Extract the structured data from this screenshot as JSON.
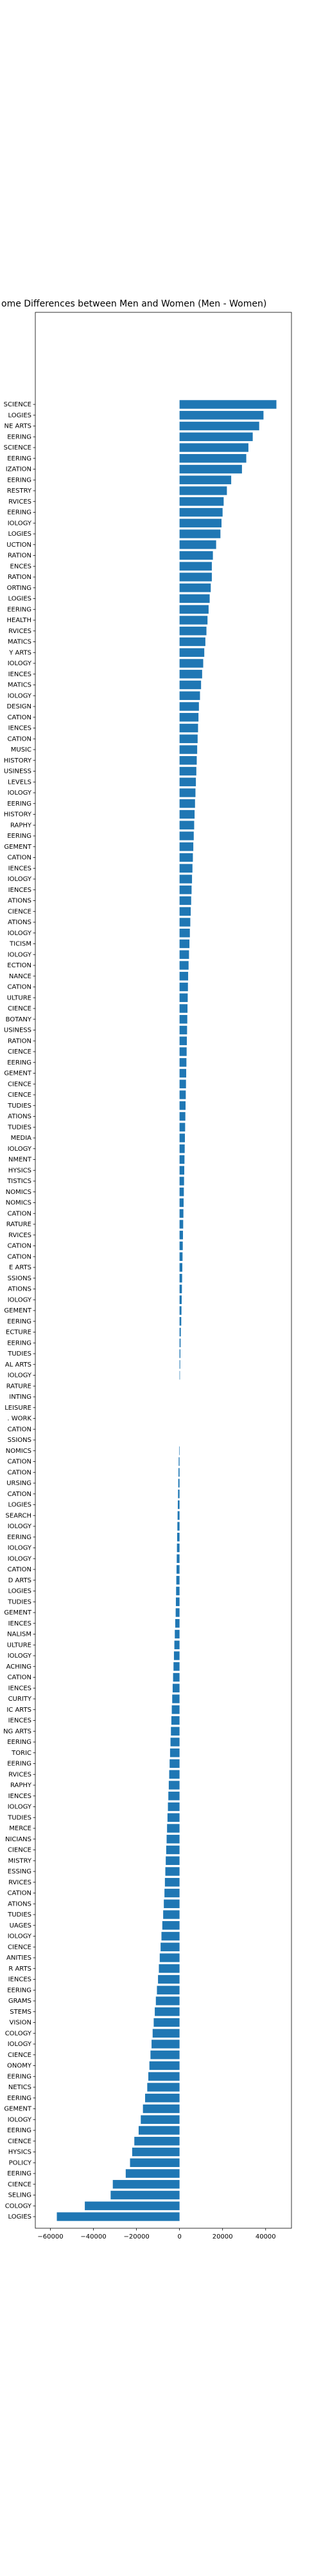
{
  "chart_data": {
    "type": "barh",
    "title": "ome Differences between Men and Women (Men - Women)",
    "color": "#1f77b4",
    "categories": [
      "SCIENCE",
      "LOGIES",
      "NE ARTS",
      "EERING",
      "SCIENCE",
      "EERING",
      "IZATION",
      "EERING",
      "RESTRY",
      "RVICES",
      "EERING",
      "IOLOGY",
      "LOGIES",
      "UCTION",
      "RATION",
      "ENCES",
      "RATION",
      "ORTING",
      "LOGIES",
      "EERING",
      "HEALTH",
      "RVICES",
      "MATICS",
      "Y ARTS",
      "IOLOGY",
      "IENCES",
      "MATICS",
      "IOLOGY",
      "DESIGN",
      "CATION",
      "IENCES",
      "CATION",
      "MUSIC",
      "HISTORY",
      "USINESS",
      "LEVELS",
      "IOLOGY",
      "EERING",
      "HISTORY",
      "RAPHY",
      "EERING",
      "GEMENT",
      "CATION",
      "IENCES",
      "IOLOGY",
      "IENCES",
      "ATIONS",
      "CIENCE",
      "ATIONS",
      "IOLOGY",
      "TICISM",
      "IOLOGY",
      "ECTION",
      "NANCE",
      "CATION",
      "ULTURE",
      "CIENCE",
      "BOTANY",
      "USINESS",
      "RATION",
      "CIENCE",
      "EERING",
      "GEMENT",
      "CIENCE",
      "CIENCE",
      "TUDIES",
      "ATIONS",
      "TUDIES",
      "MEDIA",
      "IOLOGY",
      "NMENT",
      "HYSICS",
      "TISTICS",
      "NOMICS",
      "NOMICS",
      "CATION",
      "RATURE",
      "RVICES",
      "CATION",
      "CATION",
      "E ARTS",
      "SSIONS",
      "ATIONS",
      "IOLOGY",
      "GEMENT",
      "EERING",
      "ECTURE",
      "EERING",
      "TUDIES",
      "AL ARTS",
      "IOLOGY",
      "RATURE",
      "INTING",
      "LEISURE",
      ". WORK",
      "CATION",
      "SSIONS",
      "NOMICS",
      "CATION",
      "CATION",
      "URSING",
      "CATION",
      "LOGIES",
      "SEARCH",
      "IOLOGY",
      "EERING",
      "IOLOGY",
      "IOLOGY",
      "CATION",
      "D ARTS",
      "LOGIES",
      "TUDIES",
      "GEMENT",
      "IENCES",
      "NALISM",
      "ULTURE",
      "IOLOGY",
      "ACHING",
      "CATION",
      "IENCES",
      "CURITY",
      "IC ARTS",
      "IENCES",
      "NG ARTS",
      "EERING",
      "TORIC",
      "EERING",
      "RVICES",
      "RAPHY",
      "IENCES",
      "IOLOGY",
      "TUDIES",
      "MERCE",
      "NICIANS",
      "CIENCE",
      "MISTRY",
      "ESSING",
      "RVICES",
      "CATION",
      "ATIONS",
      "TUDIES",
      "UAGES",
      "IOLOGY",
      "CIENCE",
      "ANITIES",
      "R ARTS",
      "IENCES",
      "EERING",
      "GRAMS",
      "STEMS",
      "VISION",
      "COLOGY",
      "IOLOGY",
      "CIENCE",
      "ONOMY",
      "EERING",
      "NETICS",
      "EERING",
      "GEMENT",
      "IOLOGY",
      "EERING",
      "CIENCE",
      "HYSICS",
      "POLICY",
      "EERING",
      "CIENCE",
      "SELING",
      "COLOGY",
      "LOGIES"
    ],
    "values": [
      45000,
      39000,
      37000,
      34000,
      32000,
      31000,
      29000,
      24000,
      22000,
      20500,
      20000,
      19500,
      19000,
      17000,
      15500,
      15000,
      15000,
      14500,
      14000,
      13500,
      13000,
      12500,
      12000,
      11500,
      11000,
      10500,
      10000,
      9500,
      9000,
      8800,
      8600,
      8400,
      8200,
      8000,
      7800,
      7600,
      7400,
      7200,
      7000,
      6800,
      6600,
      6400,
      6200,
      6000,
      5800,
      5600,
      5400,
      5200,
      5000,
      4800,
      4600,
      4400,
      4200,
      4000,
      3900,
      3800,
      3700,
      3600,
      3500,
      3400,
      3300,
      3200,
      3100,
      3000,
      2900,
      2800,
      2700,
      2600,
      2500,
      2400,
      2300,
      2200,
      2100,
      2000,
      1900,
      1800,
      1700,
      1600,
      1500,
      1400,
      1300,
      1200,
      1100,
      1000,
      900,
      800,
      600,
      500,
      400,
      300,
      200,
      0,
      0,
      0,
      0,
      0,
      0,
      -200,
      -400,
      -500,
      -600,
      -700,
      -800,
      -900,
      -1000,
      -1100,
      -1200,
      -1300,
      -1400,
      -1500,
      -1600,
      -1700,
      -1800,
      -2000,
      -2200,
      -2400,
      -2600,
      -2800,
      -3000,
      -3200,
      -3400,
      -3600,
      -3800,
      -4000,
      -4200,
      -4400,
      -4600,
      -4800,
      -5000,
      -5200,
      -5400,
      -5600,
      -5800,
      -6000,
      -6200,
      -6400,
      -6600,
      -6800,
      -7000,
      -7300,
      -7600,
      -8000,
      -8400,
      -8800,
      -9200,
      -9600,
      -10000,
      -10500,
      -11000,
      -11500,
      -12000,
      -12500,
      -13000,
      -13500,
      -14000,
      -14500,
      -15000,
      -16000,
      -17000,
      -18000,
      -19000,
      -21000,
      -22000,
      -23000,
      -25000,
      -31000,
      -32000,
      -44000,
      -57000
    ],
    "xlim": [
      -67000,
      52000
    ],
    "xticks": [
      {
        "value": -60000,
        "label": "−60000"
      },
      {
        "value": -40000,
        "label": "−40000"
      },
      {
        "value": -20000,
        "label": "−20000"
      },
      0,
      20000,
      40000
    ]
  }
}
